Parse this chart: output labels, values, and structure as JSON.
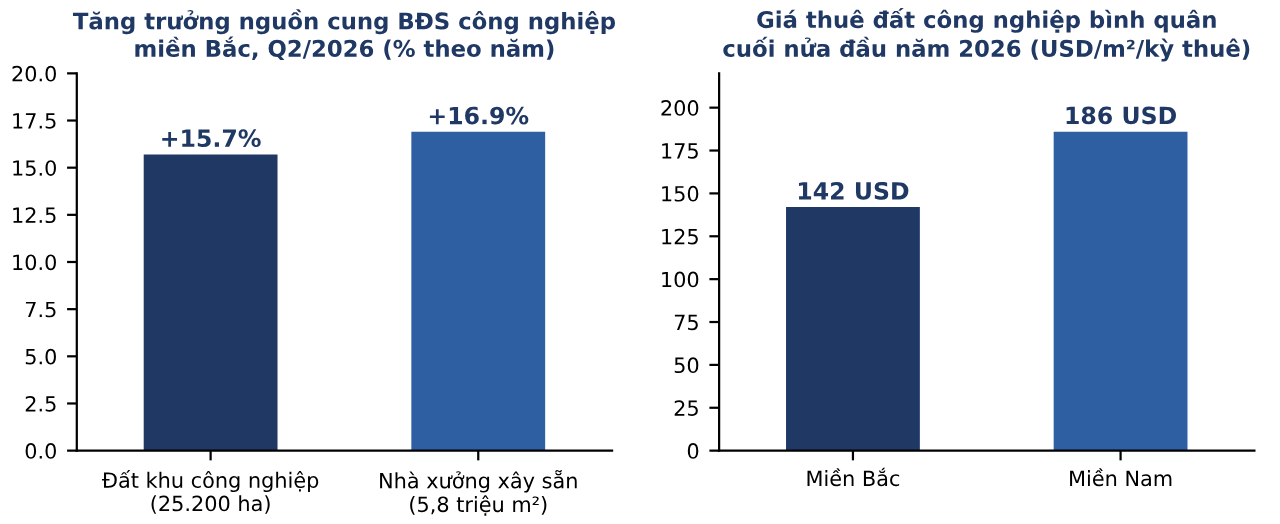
{
  "chart_data": [
    {
      "type": "bar",
      "title": "Tăng trưởng nguồn cung BĐS công nghiệp\nmiền Bắc, Q2/2026 (% theo năm)",
      "categories": [
        "Đất khu công nghiệp\n(25.200 ha)",
        "Nhà xưởng xây sẵn\n(5,8 triệu m²)"
      ],
      "values": [
        15.7,
        16.9
      ],
      "colors": [
        "#1f3864",
        "#2e5fa3"
      ],
      "value_labels": [
        "+15.7%",
        "+16.9%"
      ],
      "ylim": [
        0,
        20
      ],
      "yticks": [
        {
          "value": 0,
          "label": "0.0"
        },
        2.5,
        {
          "value": 5,
          "label": "5.0"
        },
        7.5,
        {
          "value": 10,
          "label": "10.0"
        },
        12.5,
        {
          "value": 15,
          "label": "15.0"
        },
        17.5,
        {
          "value": 20,
          "label": "20.0"
        }
      ],
      "grid": false,
      "legend": false
    },
    {
      "type": "bar",
      "title": "Giá thuê đất công nghiệp bình quân\ncuối nửa đầu năm 2026 (USD/m²/kỳ thuê)",
      "categories": [
        "Miền Bắc",
        "Miền Nam"
      ],
      "values": [
        142,
        186
      ],
      "colors": [
        "#1f3864",
        "#2e5fa3"
      ],
      "value_labels": [
        "142 USD",
        "186 USD"
      ],
      "ylim": [
        0,
        220
      ],
      "yticks": [
        0,
        25,
        50,
        75,
        100,
        125,
        150,
        175,
        200
      ],
      "grid": false,
      "legend": false
    }
  ]
}
